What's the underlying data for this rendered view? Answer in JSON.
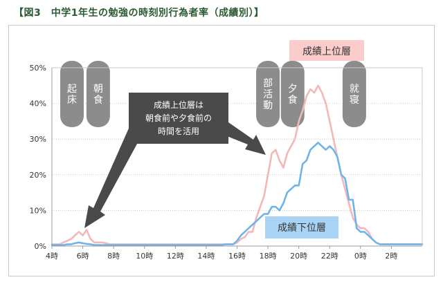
{
  "title": "【図3　中学1年生の勉強の時刻別行為者率（成績別）】",
  "chart_data": {
    "type": "line",
    "title": "【図3　中学1年生の勉強の時刻別行為者率（成績別）】",
    "x_labels": [
      "4時",
      "6時",
      "8時",
      "10時",
      "12時",
      "14時",
      "16時",
      "18時",
      "20時",
      "22時",
      "0時",
      "2時"
    ],
    "x_hours_start": 4,
    "x_hours_end": 28,
    "x_step_hours": 0.25,
    "ylim": [
      0,
      50
    ],
    "y_ticks": [
      0,
      10,
      20,
      30,
      40,
      50
    ],
    "y_tick_labels": [
      "0%",
      "10%",
      "20%",
      "30%",
      "40%",
      "50%"
    ],
    "grid": "horizontal-dotted",
    "series": [
      {
        "name": "成績上位層",
        "color": "#f4b7b7",
        "values": [
          0.5,
          0.5,
          0.5,
          1,
          1.5,
          2,
          3,
          4,
          3,
          4.5,
          2,
          1,
          1,
          1,
          0.8,
          0.5,
          0.5,
          0.5,
          0.5,
          0.5,
          0.5,
          0.5,
          0.5,
          0.5,
          0.5,
          0.5,
          0.5,
          0.5,
          0.5,
          0.5,
          0.5,
          0.5,
          0.5,
          0.5,
          0.5,
          0.5,
          0.5,
          0.5,
          0.5,
          0.5,
          0.5,
          0.5,
          0.5,
          0.5,
          0.5,
          0.5,
          0.5,
          0.5,
          1,
          2,
          2.5,
          4,
          4,
          8,
          11,
          14,
          20,
          26,
          27,
          24,
          22,
          26,
          28,
          30,
          35,
          38,
          42,
          44,
          43,
          45,
          43,
          40,
          35,
          30,
          25,
          20,
          16,
          12,
          8,
          6,
          5,
          5,
          4,
          2,
          1,
          0.5,
          0.5,
          0.5,
          0.5,
          0.5,
          0.5,
          0.5,
          0.5,
          0.5,
          0.5,
          0.5,
          0.5
        ]
      },
      {
        "name": "成績下位層",
        "color": "#6fb4e8",
        "values": [
          0.3,
          0.3,
          0.3,
          0.3,
          0.5,
          0.5,
          0.8,
          1,
          0.8,
          0.6,
          0.5,
          0.3,
          0.3,
          0.3,
          0.3,
          0.3,
          0.3,
          0.3,
          0.3,
          0.3,
          0.3,
          0.3,
          0.3,
          0.3,
          0.3,
          0.3,
          0.3,
          0.3,
          0.3,
          0.3,
          0.3,
          0.3,
          0.3,
          0.3,
          0.3,
          0.3,
          0.3,
          0.3,
          0.3,
          0.3,
          0.3,
          0.3,
          0.3,
          0.3,
          0.3,
          0.5,
          0.5,
          0.5,
          1.5,
          3,
          4,
          5,
          6,
          7,
          8,
          9,
          9,
          11,
          11,
          10,
          12,
          15,
          16,
          17,
          17,
          23,
          24,
          27,
          28,
          29,
          28,
          27,
          28,
          27,
          25,
          20,
          19,
          13,
          13,
          5,
          4,
          4,
          3,
          2,
          1,
          0.5,
          0.5,
          0.5,
          0.5,
          0.5,
          0.5,
          0.5,
          0.5,
          0.5,
          0.5,
          0.5,
          0.5
        ]
      }
    ],
    "labels": {
      "upper": "成績上位層",
      "lower": "成績下位層",
      "arrow_note": [
        "成績上位層は",
        "朝食前や夕食前の",
        "時間を活用"
      ]
    },
    "annotations": [
      {
        "text": "起床",
        "hour": 5.3
      },
      {
        "text": "朝食",
        "hour": 7.0
      },
      {
        "text": "部活動",
        "hour": 18.0
      },
      {
        "text": "夕食",
        "hour": 19.6
      },
      {
        "text": "就寝",
        "hour": 23.6
      }
    ]
  },
  "colors": {
    "axis": "#9a9a9a",
    "grid": "#c8c8c8",
    "pill": "#8c8c8c",
    "note_box": "#4a4a4a",
    "upper_label_bg": "#fbcccc",
    "lower_label_bg": "#a9d4f5",
    "title": "#2a5a30"
  }
}
